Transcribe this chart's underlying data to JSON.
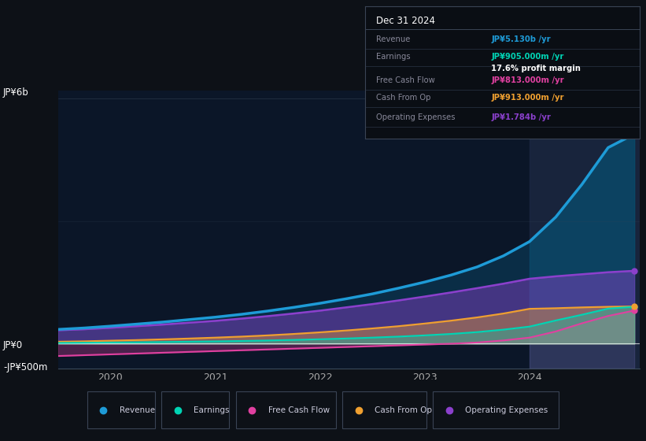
{
  "bg_color": "#0d1117",
  "chart_bg": "#0b1628",
  "years": [
    2019.5,
    2019.75,
    2020.0,
    2020.25,
    2020.5,
    2020.75,
    2021.0,
    2021.25,
    2021.5,
    2021.75,
    2022.0,
    2022.25,
    2022.5,
    2022.75,
    2023.0,
    2023.25,
    2023.5,
    2023.75,
    2024.0,
    2024.25,
    2024.5,
    2024.75,
    2025.0
  ],
  "revenue": [
    350,
    385,
    430,
    480,
    530,
    590,
    650,
    720,
    800,
    890,
    990,
    1100,
    1220,
    1360,
    1510,
    1680,
    1880,
    2150,
    2500,
    3100,
    3900,
    4800,
    5130
  ],
  "earnings": [
    20,
    25,
    30,
    35,
    42,
    50,
    58,
    68,
    80,
    94,
    110,
    128,
    150,
    175,
    205,
    240,
    285,
    345,
    420,
    570,
    710,
    860,
    905
  ],
  "free_cash_flow": [
    -300,
    -280,
    -260,
    -240,
    -220,
    -200,
    -180,
    -160,
    -140,
    -120,
    -100,
    -80,
    -60,
    -40,
    -20,
    0,
    30,
    80,
    150,
    300,
    500,
    680,
    813
  ],
  "cash_from_op": [
    50,
    60,
    75,
    90,
    108,
    128,
    150,
    175,
    205,
    240,
    280,
    325,
    375,
    430,
    495,
    565,
    645,
    740,
    855,
    870,
    890,
    905,
    913
  ],
  "operating_expenses": [
    330,
    355,
    390,
    430,
    470,
    515,
    560,
    615,
    675,
    740,
    810,
    890,
    970,
    1060,
    1155,
    1255,
    1360,
    1470,
    1590,
    1650,
    1700,
    1750,
    1784
  ],
  "revenue_color": "#1e9bd7",
  "earnings_color": "#00d4b4",
  "fcf_color": "#e040a0",
  "cashop_color": "#f0a030",
  "opex_color": "#8b40cc",
  "shaded_start": 2024.0,
  "xlim": [
    2019.5,
    2025.05
  ],
  "ylim": [
    -600,
    6200
  ],
  "ylabel_6b": "JP¥6b",
  "ylabel_0": "JP¥0",
  "ylabel_neg500": "-JP¥500m",
  "y6b_val": 6000,
  "y0_val": 0,
  "yneg500_val": -500,
  "xticks": [
    2020,
    2021,
    2022,
    2023,
    2024
  ],
  "box_title": "Dec 31 2024",
  "box_revenue_label": "Revenue",
  "box_revenue_value": "JP¥5.130b /yr",
  "box_earnings_label": "Earnings",
  "box_earnings_value": "JP¥905.000m /yr",
  "box_margin": "17.6% profit margin",
  "box_fcf_label": "Free Cash Flow",
  "box_fcf_value": "JP¥813.000m /yr",
  "box_cashop_label": "Cash From Op",
  "box_cashop_value": "JP¥913.000m /yr",
  "box_opex_label": "Operating Expenses",
  "box_opex_value": "JP¥1.784b /yr",
  "legend_items": [
    "Revenue",
    "Earnings",
    "Free Cash Flow",
    "Cash From Op",
    "Operating Expenses"
  ],
  "legend_colors": [
    "#1e9bd7",
    "#00d4b4",
    "#e040a0",
    "#f0a030",
    "#8b40cc"
  ]
}
